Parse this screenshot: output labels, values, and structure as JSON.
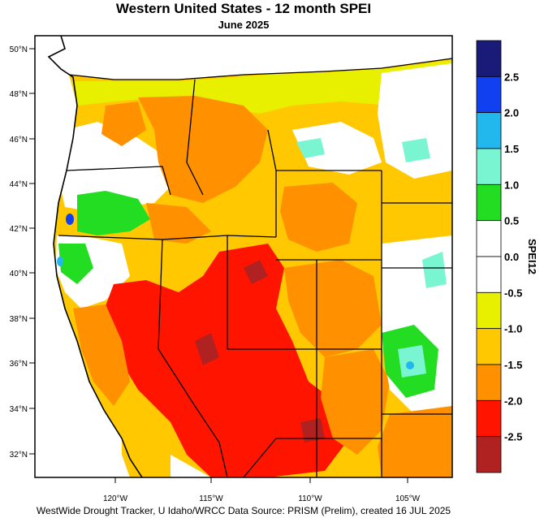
{
  "title": "Western United States - 12 month SPEI",
  "subtitle": "June 2025",
  "credit": "WestWide Drought Tracker, U Idaho/WRCC Data Source: PRISM (Prelim), created 16 JUL 2025",
  "latitude_labels": [
    "50°N",
    "48°N",
    "46°N",
    "44°N",
    "42°N",
    "40°N",
    "38°N",
    "36°N",
    "34°N",
    "32°N"
  ],
  "longitude_labels": [
    "120°W",
    "115°W",
    "110°W",
    "105°W"
  ],
  "colorbar": {
    "title": "SPEI12",
    "tick_labels": [
      "2.5",
      "2.0",
      "1.5",
      "1.0",
      "0.5",
      "0.0",
      "-0.5",
      "-1.0",
      "-1.5",
      "-2.0",
      "-2.5"
    ],
    "colors": [
      "#1a1a78",
      "#1040f0",
      "#22b8ee",
      "#7af5d2",
      "#22dd22",
      "#ffffff",
      "#ffffff",
      "#e8f000",
      "#ffc800",
      "#ff9000",
      "#ff1400",
      "#b02222"
    ]
  },
  "map_colors": {
    "drought_exceptional": "#b02222",
    "drought_extreme": "#ff1400",
    "drought_severe": "#ff9000",
    "drought_moderate": "#ffc800",
    "dry_mild": "#e8f000",
    "normal": "#ffffff",
    "wet_mild": "#22dd22",
    "wet_moderate": "#7af5d2",
    "wet_severe": "#22b8ee",
    "wet_extreme": "#1040f0"
  }
}
